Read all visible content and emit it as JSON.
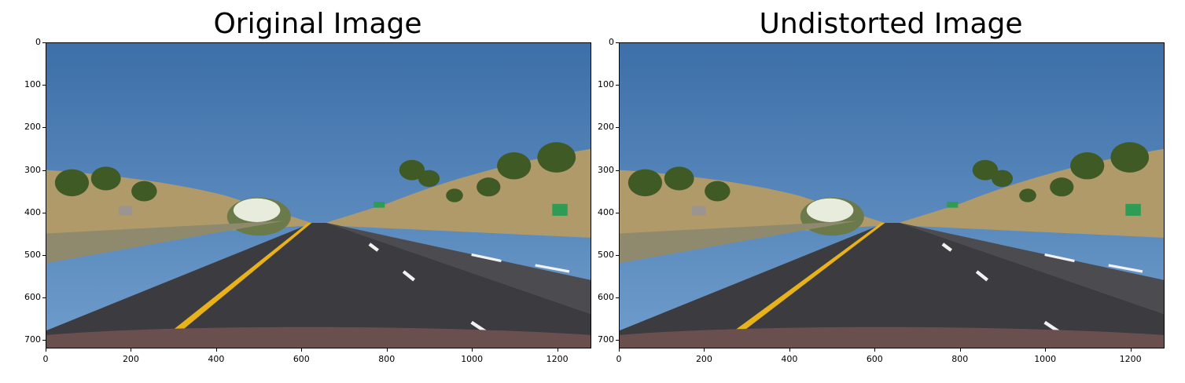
{
  "figure": {
    "panels": [
      {
        "title": "Original Image",
        "image_subject": "dashcam-road-scene",
        "x_ticks": [
          "0",
          "200",
          "400",
          "600",
          "800",
          "1000",
          "1200"
        ],
        "y_ticks": [
          "0",
          "100",
          "200",
          "300",
          "400",
          "500",
          "600",
          "700"
        ]
      },
      {
        "title": "Undistorted Image",
        "image_subject": "dashcam-road-scene",
        "x_ticks": [
          "0",
          "200",
          "400",
          "600",
          "800",
          "1000",
          "1200"
        ],
        "y_ticks": [
          "0",
          "100",
          "200",
          "300",
          "400",
          "500",
          "600",
          "700"
        ]
      }
    ],
    "colors": {
      "sky_top": "#3d6fa8",
      "sky_bottom": "#6f9dcc",
      "hill": "#b09a6a",
      "road": "#3b3b40",
      "yellow_line": "#e8b21a",
      "white_line": "#f2f2f2",
      "tree": "#3f5a25",
      "hood": "#6a4f4f"
    }
  }
}
